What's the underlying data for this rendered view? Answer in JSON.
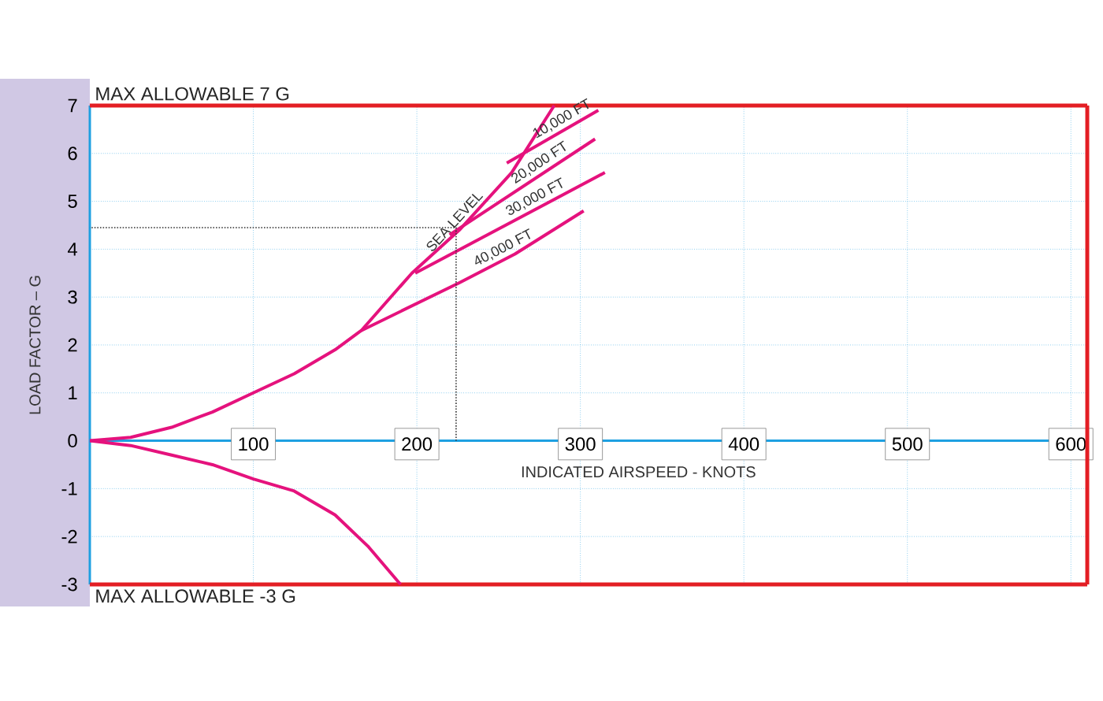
{
  "chart_data": {
    "type": "line",
    "xlabel": "INDICATED AIRSPEED - KNOTS",
    "ylabel": "LOAD FACTOR – G",
    "xlim": [
      0,
      610
    ],
    "ylim": [
      -3,
      7
    ],
    "xticks": [
      100,
      200,
      300,
      400,
      500,
      600
    ],
    "yticks": [
      -3,
      -2,
      -1,
      0,
      1,
      2,
      3,
      4,
      5,
      6,
      7
    ],
    "grid": true,
    "marker": "none",
    "line_style": "solid",
    "series": [
      {
        "name": "SEA LEVEL",
        "color": "#e5127d",
        "x": [
          0,
          25,
          50,
          75,
          100,
          125,
          150,
          166,
          197,
          226,
          258,
          284
        ],
        "values": [
          0,
          0.07,
          0.28,
          0.6,
          1.0,
          1.4,
          1.9,
          2.3,
          3.5,
          4.4,
          5.6,
          7.0
        ]
      },
      {
        "name": "10,000 FT",
        "color": "#e5127d",
        "x": [
          255,
          311
        ],
        "values": [
          5.8,
          6.9
        ]
      },
      {
        "name": "20,000 FT",
        "color": "#e5127d",
        "x": [
          220,
          309
        ],
        "values": [
          4.3,
          6.3
        ]
      },
      {
        "name": "30,000 FT",
        "color": "#e5127d",
        "x": [
          199,
          315
        ],
        "values": [
          3.5,
          5.6
        ]
      },
      {
        "name": "40,000 FT",
        "color": "#e5127d",
        "x": [
          166,
          226,
          260,
          302
        ],
        "values": [
          2.3,
          3.3,
          3.9,
          4.8
        ]
      },
      {
        "color": "#e5127d",
        "x": [
          0,
          25,
          50,
          75,
          100,
          125,
          150,
          170,
          190
        ],
        "values": [
          0,
          -0.1,
          -0.3,
          -0.5,
          -0.8,
          -1.05,
          -1.55,
          -2.2,
          -3.0
        ]
      },
      {
        "color": "#333333",
        "line_style": "dotted",
        "x": [
          224,
          224,
          0
        ],
        "values": [
          0,
          4.45,
          4.45
        ]
      }
    ],
    "ref_lines": [
      {
        "axis": "y",
        "value": 7,
        "label": "MAX ALLOWABLE 7 G",
        "color": "#e31e24"
      },
      {
        "axis": "y",
        "value": -3,
        "label": "MAX ALLOWABLE -3 G",
        "color": "#e31e24"
      },
      {
        "axis": "x",
        "value": 610,
        "color": "#e31e24"
      }
    ]
  }
}
